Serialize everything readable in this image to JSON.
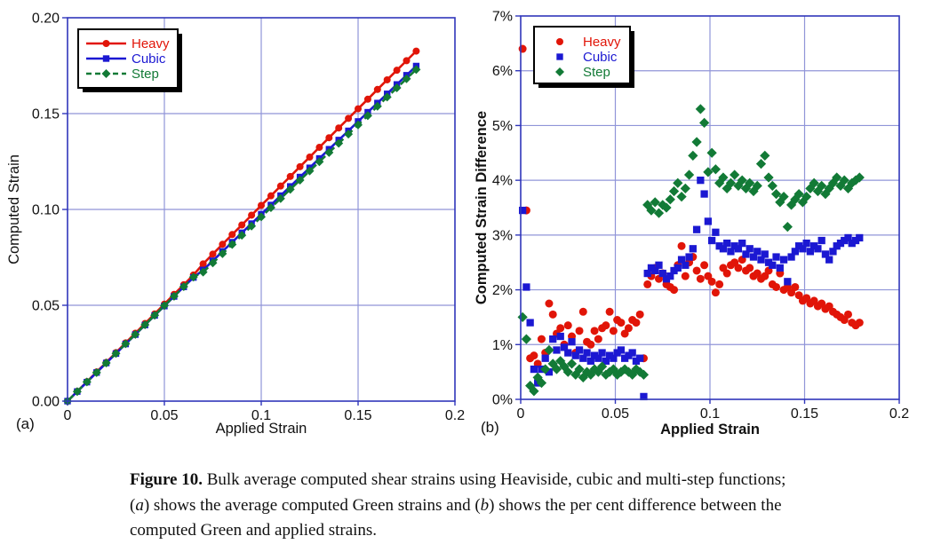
{
  "figure": {
    "panel_a_label": "(a)",
    "panel_b_label": "(b)",
    "caption": {
      "lines": [
        {
          "parts": [
            {
              "t": "Figure 10.",
              "b": true
            },
            {
              "t": " Bulk average computed shear strains using Heaviside, cubic and multi-step functions;"
            }
          ]
        },
        {
          "parts": [
            {
              "t": "("
            },
            {
              "t": "a",
              "i": true
            },
            {
              "t": ") shows the average computed Green strains and ("
            },
            {
              "t": "b",
              "i": true
            },
            {
              "t": ") shows the per cent difference between the"
            }
          ]
        },
        {
          "parts": [
            {
              "t": "computed Green and applied strains."
            }
          ]
        }
      ]
    }
  },
  "colors": {
    "red": "#e11508",
    "blue": "#1b18d2",
    "green": "#127a36",
    "grid": "#9095d8",
    "frame": "#3036bb",
    "text": "#111111",
    "background": "#ffffff",
    "legend_border": "#000000",
    "legend_shadow": "#000000"
  },
  "chart_data": [
    {
      "panel": "a",
      "type": "line",
      "xlabel": "Applied Strain",
      "ylabel": "Computed Strain",
      "bold_axis_labels": false,
      "xlim": [
        0,
        0.2
      ],
      "ylim": [
        0,
        0.2
      ],
      "xticks": [
        0,
        0.05,
        0.1,
        0.15,
        0.2
      ],
      "xtick_labels": [
        "0",
        "0.05",
        "0.1",
        "0.15",
        "0.2"
      ],
      "yticks": [
        0,
        0.05,
        0.1,
        0.15,
        0.2
      ],
      "ytick_labels": [
        "0.00",
        "0.05",
        "0.10",
        "0.15",
        "0.20"
      ],
      "grid": true,
      "legend_position": "top-left",
      "x_start": 0,
      "x_step": 0.005,
      "series": [
        {
          "name": "Heavy",
          "color": "#e11508",
          "marker": "circle",
          "line": "solid",
          "values": [
            0,
            0.0051,
            0.0101,
            0.0152,
            0.0202,
            0.0253,
            0.0304,
            0.0354,
            0.0405,
            0.0455,
            0.0506,
            0.0557,
            0.0607,
            0.0658,
            0.0716,
            0.0767,
            0.0818,
            0.0869,
            0.0919,
            0.097,
            0.1021,
            0.1071,
            0.1122,
            0.1172,
            0.1223,
            0.1273,
            0.1324,
            0.1374,
            0.1425,
            0.1475,
            0.1525,
            0.1575,
            0.1626,
            0.1676,
            0.1726,
            0.1776,
            0.1826
          ]
        },
        {
          "name": "Cubic",
          "color": "#1b18d2",
          "marker": "square",
          "line": "solid",
          "values": [
            0,
            0.005,
            0.0099,
            0.0149,
            0.0199,
            0.0248,
            0.0298,
            0.0347,
            0.0397,
            0.0447,
            0.0496,
            0.0546,
            0.0596,
            0.0645,
            0.0684,
            0.0732,
            0.0781,
            0.0829,
            0.0878,
            0.0926,
            0.0975,
            0.1023,
            0.1072,
            0.112,
            0.1169,
            0.1217,
            0.1266,
            0.1314,
            0.1362,
            0.141,
            0.1459,
            0.1507,
            0.1555,
            0.1603,
            0.1652,
            0.17,
            0.1748
          ]
        },
        {
          "name": "Step",
          "color": "#127a36",
          "marker": "diamond",
          "line": "dashed",
          "values": [
            0,
            0.005,
            0.01,
            0.0149,
            0.0199,
            0.0249,
            0.0299,
            0.0348,
            0.0398,
            0.0448,
            0.0498,
            0.0547,
            0.0597,
            0.0647,
            0.0673,
            0.0721,
            0.0769,
            0.0817,
            0.0865,
            0.0913,
            0.0961,
            0.1009,
            0.1057,
            0.1105,
            0.1153,
            0.1201,
            0.1249,
            0.1297,
            0.1345,
            0.1393,
            0.1441,
            0.1489,
            0.1538,
            0.1586,
            0.1634,
            0.1682,
            0.173
          ]
        }
      ]
    },
    {
      "panel": "b",
      "type": "scatter",
      "xlabel": "Applied Strain",
      "ylabel": "Computed Strain Difference",
      "bold_axis_labels": true,
      "xlim": [
        0,
        0.2
      ],
      "ylim": [
        0,
        7
      ],
      "y_unit": "%",
      "xticks": [
        0,
        0.05,
        0.1,
        0.15,
        0.2
      ],
      "xtick_labels": [
        "0",
        "0.05",
        "0.1",
        "0.15",
        "0.2"
      ],
      "yticks": [
        0,
        1,
        2,
        3,
        4,
        5,
        6,
        7
      ],
      "ytick_labels": [
        "0%",
        "1%",
        "2%",
        "3%",
        "4%",
        "5%",
        "6%",
        "7%"
      ],
      "grid": true,
      "legend_position": "top-left",
      "x_start": 0.001,
      "x_step": 0.002,
      "series": [
        {
          "name": "Heavy",
          "color": "#e11508",
          "marker": "circle",
          "values": [
            6.4,
            3.45,
            0.75,
            0.8,
            0.65,
            1.1,
            0.85,
            1.75,
            1.55,
            1.2,
            1.3,
            1.0,
            1.35,
            1.15,
            0.85,
            1.25,
            1.6,
            1.05,
            1.0,
            1.25,
            1.1,
            1.3,
            1.35,
            1.6,
            1.25,
            1.45,
            1.4,
            1.2,
            1.3,
            1.45,
            1.4,
            1.55,
            0.75,
            2.1,
            2.25,
            2.4,
            2.2,
            2.3,
            2.1,
            2.05,
            2.0,
            2.45,
            2.8,
            2.25,
            2.5,
            2.6,
            2.35,
            2.2,
            2.45,
            2.25,
            2.15,
            1.95,
            2.1,
            2.4,
            2.3,
            2.45,
            2.5,
            2.4,
            2.55,
            2.35,
            2.4,
            2.25,
            2.3,
            2.2,
            2.25,
            2.35,
            2.1,
            2.05,
            2.3,
            2.0,
            2.05,
            1.95,
            2.05,
            1.9,
            1.8,
            1.85,
            1.75,
            1.8,
            1.7,
            1.75,
            1.65,
            1.7,
            1.6,
            1.55,
            1.5,
            1.45,
            1.55,
            1.4,
            1.35,
            1.4
          ]
        },
        {
          "name": "Cubic",
          "color": "#1b18d2",
          "marker": "square",
          "values": [
            3.45,
            2.05,
            1.4,
            0.55,
            0.3,
            0.55,
            0.75,
            0.5,
            1.1,
            0.9,
            1.15,
            0.95,
            0.85,
            1.05,
            0.8,
            0.9,
            0.75,
            0.85,
            0.7,
            0.8,
            0.75,
            0.85,
            0.7,
            0.8,
            0.75,
            0.85,
            0.9,
            0.75,
            0.8,
            0.85,
            0.7,
            0.75,
            0.05,
            2.3,
            2.4,
            2.35,
            2.45,
            2.3,
            2.2,
            2.25,
            2.35,
            2.4,
            2.55,
            2.45,
            2.6,
            2.75,
            3.1,
            4.0,
            3.75,
            3.25,
            2.9,
            3.05,
            2.8,
            2.75,
            2.85,
            2.7,
            2.8,
            2.75,
            2.85,
            2.65,
            2.75,
            2.6,
            2.7,
            2.55,
            2.65,
            2.5,
            2.45,
            2.6,
            2.4,
            2.55,
            2.15,
            2.6,
            2.7,
            2.8,
            2.75,
            2.85,
            2.7,
            2.8,
            2.75,
            2.9,
            2.65,
            2.55,
            2.7,
            2.8,
            2.85,
            2.9,
            2.95,
            2.85,
            2.9,
            2.95
          ]
        },
        {
          "name": "Step",
          "color": "#127a36",
          "marker": "diamond",
          "values": [
            1.5,
            1.1,
            0.25,
            0.15,
            0.4,
            0.3,
            0.55,
            0.9,
            0.65,
            0.55,
            0.7,
            0.6,
            0.5,
            0.65,
            0.45,
            0.55,
            0.4,
            0.5,
            0.45,
            0.55,
            0.5,
            0.6,
            0.45,
            0.5,
            0.55,
            0.45,
            0.5,
            0.55,
            0.5,
            0.45,
            0.55,
            0.5,
            0.45,
            3.55,
            3.45,
            3.6,
            3.4,
            3.55,
            3.5,
            3.65,
            3.8,
            3.95,
            3.7,
            3.85,
            4.1,
            4.45,
            4.7,
            5.3,
            5.05,
            4.15,
            4.5,
            4.2,
            3.95,
            4.05,
            3.85,
            3.95,
            4.1,
            3.9,
            4.0,
            3.85,
            3.95,
            3.8,
            3.9,
            4.3,
            4.45,
            4.05,
            3.9,
            3.75,
            3.6,
            3.7,
            3.15,
            3.55,
            3.65,
            3.75,
            3.6,
            3.7,
            3.85,
            3.95,
            3.8,
            3.9,
            3.75,
            3.85,
            3.95,
            4.05,
            3.9,
            4.0,
            3.85,
            3.95,
            4.0,
            4.05
          ]
        }
      ]
    }
  ]
}
